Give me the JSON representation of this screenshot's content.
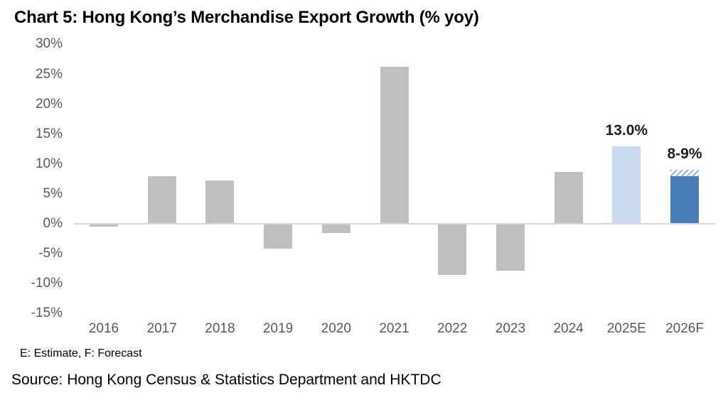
{
  "title": "Chart 5: Hong Kong’s Merchandise Export Growth (% yoy)",
  "footnote": "E: Estimate, F: Forecast",
  "source": "Source: Hong Kong Census & Statistics Department and HKTDC",
  "colors": {
    "gray": "#BFBFBF",
    "light_blue": "#C9D9EF",
    "blue": "#4A7EBB",
    "hatch_blue": "#8EB4E3",
    "axis_line": "#D9D9D9",
    "tick_text": "#595959",
    "label_text": "#1f1f1f",
    "title_text": "#000000"
  },
  "chart_data": {
    "type": "bar",
    "title": "Chart 5: Hong Kong’s Merchandise Export Growth (% yoy)",
    "xlabel": "",
    "ylabel": "% yoy",
    "ylim": [
      -15,
      30
    ],
    "ytick_step": 5,
    "ytick_labels": [
      "30%",
      "25%",
      "20%",
      "15%",
      "10%",
      "5%",
      "0%",
      "-5%",
      "-10%",
      "-15%"
    ],
    "grid": false,
    "legend": false,
    "categories": [
      "2016",
      "2017",
      "2018",
      "2019",
      "2020",
      "2021",
      "2022",
      "2023",
      "2024",
      "2025E",
      "2026F"
    ],
    "values": [
      -0.5,
      8.0,
      7.3,
      -4.1,
      -1.5,
      26.3,
      -8.6,
      -7.8,
      8.7,
      13.0,
      8.0
    ],
    "bars": [
      {
        "category": "2016",
        "value": -0.5,
        "color": "gray"
      },
      {
        "category": "2017",
        "value": 8.0,
        "color": "gray"
      },
      {
        "category": "2018",
        "value": 7.3,
        "color": "gray"
      },
      {
        "category": "2019",
        "value": -4.1,
        "color": "gray"
      },
      {
        "category": "2020",
        "value": -1.5,
        "color": "gray"
      },
      {
        "category": "2021",
        "value": 26.3,
        "color": "gray"
      },
      {
        "category": "2022",
        "value": -8.6,
        "color": "gray"
      },
      {
        "category": "2023",
        "value": -7.8,
        "color": "gray"
      },
      {
        "category": "2024",
        "value": 8.7,
        "color": "gray"
      },
      {
        "category": "2025E",
        "value": 13.0,
        "color": "light_blue",
        "label": "13.0%"
      },
      {
        "category": "2026F",
        "value": 8.0,
        "color": "blue",
        "hatch_to": 9.0,
        "label": "8-9%"
      }
    ]
  }
}
